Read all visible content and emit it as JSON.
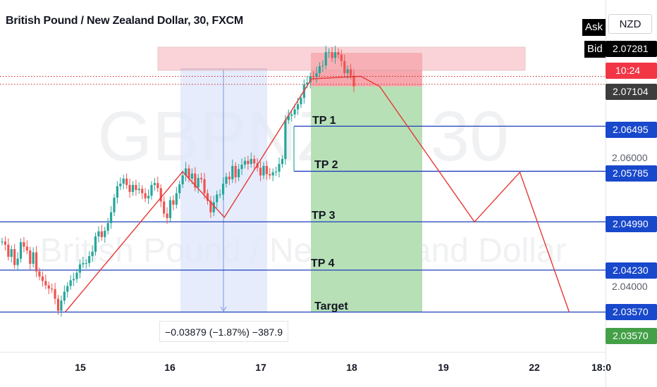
{
  "header": {
    "title": "British Pound / New Zealand Dollar, 30, FXCM"
  },
  "watermark": {
    "symbol": "GBPNZD, 30",
    "name": "British Pound / New Zealand Dollar"
  },
  "price_axis": {
    "currency": "NZD",
    "ask_label": "Ask",
    "bid_label": "Bid",
    "ask_price": "2.07281",
    "countdown": "10:24",
    "bid_price": "2.07104",
    "grid_ticks": [
      "2.06000",
      "2.04000"
    ],
    "tags": [
      {
        "label": "2.06495",
        "kind": "blue"
      },
      {
        "label": "2.05785",
        "kind": "blue"
      },
      {
        "label": "2.04990",
        "kind": "blue"
      },
      {
        "label": "2.04230",
        "kind": "blue"
      },
      {
        "label": "2.03570",
        "kind": "blue"
      },
      {
        "label": "2.03570",
        "kind": "green"
      }
    ]
  },
  "time_axis": {
    "labels": [
      "15",
      "16",
      "17",
      "18",
      "19",
      "22",
      "18:0"
    ]
  },
  "levels": {
    "tp1": "TP 1",
    "tp2": "TP 2",
    "tp3": "TP 3",
    "tp4": "TP 4",
    "target": "Target"
  },
  "measure": {
    "text": "−0.03879 (−1.87%) −387.9"
  },
  "colors": {
    "up": "#26a69a",
    "down": "#ef5350",
    "line": "#e53935",
    "level": "#1e3fbd",
    "blue_tag": "#1848cc",
    "green_tag": "#43a047",
    "red_tag": "#f23645",
    "gray_tag": "#3d3d3d"
  },
  "chart_data": {
    "type": "candlestick",
    "symbol": "GBPNZD",
    "timeframe": "30",
    "ylim": [
      2.0315,
      2.0775
    ],
    "x_ticks": [
      "15",
      "16",
      "17",
      "18",
      "19",
      "22"
    ],
    "levels": [
      {
        "name": "TP 1",
        "price": 2.06495
      },
      {
        "name": "TP 2",
        "price": 2.05785
      },
      {
        "name": "TP 3",
        "price": 2.0499
      },
      {
        "name": "TP 4",
        "price": 2.0423
      },
      {
        "name": "Target",
        "price": 2.0357
      }
    ],
    "zigzag_path": [
      {
        "t": "14 20:00",
        "price": 2.0357
      },
      {
        "t": "16 03:00",
        "price": 2.0578
      },
      {
        "t": "16 14:00",
        "price": 2.0506
      },
      {
        "t": "17 13:00",
        "price": 2.0724
      },
      {
        "t": "18 02:00",
        "price": 2.0728
      },
      {
        "t": "18 07:00",
        "price": 2.0712
      },
      {
        "t": "19 08:00",
        "price": 2.0499
      },
      {
        "t": "19 20:00",
        "price": 2.0577
      },
      {
        "t": "22 09:00",
        "price": 2.0357
      }
    ],
    "candles_series": [
      2.0468,
      2.0463,
      2.0444,
      2.0456,
      2.0431,
      2.0441,
      2.0467,
      2.046,
      2.0454,
      2.0433,
      2.0451,
      2.0421,
      2.0413,
      2.0406,
      2.0399,
      2.0394,
      2.0393,
      2.0378,
      2.0359,
      2.0375,
      2.0389,
      2.0398,
      2.0407,
      2.0409,
      2.0419,
      2.0432,
      2.0434,
      2.0434,
      2.0445,
      2.0452,
      2.0476,
      2.0484,
      2.0475,
      2.0485,
      2.0497,
      2.0514,
      2.0537,
      2.0555,
      2.0559,
      2.0567,
      2.0557,
      2.0546,
      2.0557,
      2.0549,
      2.0551,
      2.0544,
      2.0536,
      2.054,
      2.0557,
      2.056,
      2.0552,
      2.0531,
      2.0512,
      2.0505,
      2.0533,
      2.0526,
      2.0544,
      2.0558,
      2.0572,
      2.0583,
      2.0567,
      2.0575,
      2.0553,
      2.0568,
      2.0566,
      2.0544,
      2.0532,
      2.0514,
      2.053,
      2.0542,
      2.0542,
      2.0559,
      2.057,
      2.0566,
      2.0587,
      2.0569,
      2.0582,
      2.0589,
      2.0595,
      2.059,
      2.0598,
      2.0591,
      2.0584,
      2.0572,
      2.0587,
      2.0574,
      2.0572,
      2.0577,
      2.0578,
      2.059,
      2.0598,
      2.0659,
      2.0666,
      2.0668,
      2.0676,
      2.0684,
      2.0694,
      2.0715,
      2.0718,
      2.0728,
      2.0727,
      2.0733,
      2.0744,
      2.0745,
      2.0766,
      2.0766,
      2.0757,
      2.0766,
      2.0762,
      2.0752,
      2.0733,
      2.0739,
      2.0729,
      2.0712
    ],
    "long_position_rect": {
      "entry": 2.0712,
      "stop": 2.0765,
      "target": 2.0357
    }
  }
}
